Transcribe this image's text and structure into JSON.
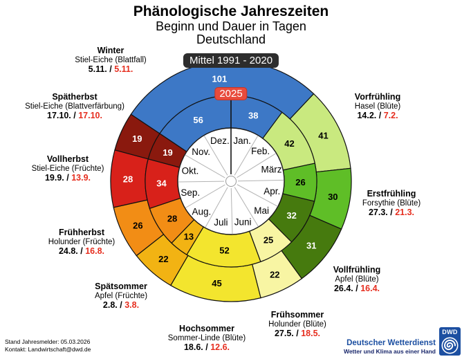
{
  "title": {
    "line1": "Phänologische Jahreszeiten",
    "line2": "Beginn und Dauer in Tagen",
    "line3": "Deutschland"
  },
  "badges": {
    "outer_ring": "Mittel 1991 - 2020",
    "inner_ring": "2025"
  },
  "footer": {
    "line1": "Stand Jahresmelder: 05.03.2026",
    "line2": "Kontakt: Landwirtschaft@dwd.de"
  },
  "logo": {
    "name": "Deutscher Wetterdienst",
    "tagline": "Wetter und Klima aus einer Hand",
    "abbr": "DWD",
    "color": "#1c4fa1"
  },
  "chart_data": {
    "type": "polar-ring-calendar",
    "rings": [
      {
        "id": "outer",
        "label": "Mittel 1991 - 2020"
      },
      {
        "id": "inner",
        "label": "2025"
      }
    ],
    "months": [
      "Jan.",
      "Feb.",
      "März",
      "Apr.",
      "Mai",
      "Juni",
      "Juli",
      "Aug.",
      "Sep.",
      "Okt.",
      "Nov.",
      "Dez."
    ],
    "seasons": [
      {
        "name": "Vorfrühling",
        "plant": "Hasel (Blüte)",
        "start_mittel": "14.2.",
        "start_2025": "7.2.",
        "days_mittel": 41,
        "days_2025": 42,
        "color": "#c9e97f",
        "num_color": "#000000"
      },
      {
        "name": "Erstfrühling",
        "plant": "Forsythie (Blüte)",
        "start_mittel": "27.3.",
        "start_2025": "21.3.",
        "days_mittel": 30,
        "days_2025": 26,
        "color": "#5fbe27",
        "num_color": "#000000"
      },
      {
        "name": "Vollfrühling",
        "plant": "Apfel (Blüte)",
        "start_mittel": "26.4.",
        "start_2025": "16.4.",
        "days_mittel": 31,
        "days_2025": 32,
        "color": "#467a0e",
        "num_color": "#ffffff"
      },
      {
        "name": "Frühsommer",
        "plant": "Holunder (Blüte)",
        "start_mittel": "27.5.",
        "start_2025": "18.5.",
        "days_mittel": 22,
        "days_2025": 25,
        "color": "#f8f5a3",
        "num_color": "#000000"
      },
      {
        "name": "Hochsommer",
        "plant": "Sommer-Linde (Blüte)",
        "start_mittel": "18.6.",
        "start_2025": "12.6.",
        "days_mittel": 45,
        "days_2025": 52,
        "color": "#f3e52e",
        "num_color": "#000000"
      },
      {
        "name": "Spätsommer",
        "plant": "Apfel (Früchte)",
        "start_mittel": "2.8.",
        "start_2025": "3.8.",
        "days_mittel": 22,
        "days_2025": 13,
        "color": "#f2b313",
        "num_color": "#000000"
      },
      {
        "name": "Frühherbst",
        "plant": "Holunder (Früchte)",
        "start_mittel": "24.8.",
        "start_2025": "16.8.",
        "days_mittel": 26,
        "days_2025": 28,
        "color": "#f28d15",
        "num_color": "#000000"
      },
      {
        "name": "Vollherbst",
        "plant": "Stiel-Eiche (Früchte)",
        "start_mittel": "19.9.",
        "start_2025": "13.9.",
        "days_mittel": 28,
        "days_2025": 34,
        "color": "#d8211a",
        "num_color": "#ffffff"
      },
      {
        "name": "Spätherbst",
        "plant": "Stiel-Eiche (Blattverfärbung)",
        "start_mittel": "17.10.",
        "start_2025": "17.10.",
        "days_mittel": 19,
        "days_2025": 19,
        "color": "#8a190e",
        "num_color": "#ffffff"
      },
      {
        "name": "Winter",
        "plant": "Stiel-Eiche (Blattfall)",
        "start_mittel": "5.11.",
        "start_2025": "5.11.",
        "days_mittel": 101,
        "days_2025_split": [
          56,
          38
        ],
        "color": "#3d78c6",
        "num_color": "#ffffff"
      }
    ],
    "accent_colors": {
      "date_2025_red": "#e62e1f",
      "badge_2025_bg": "#e84b3c",
      "badge_mittel_bg": "#2d2d2d"
    }
  }
}
